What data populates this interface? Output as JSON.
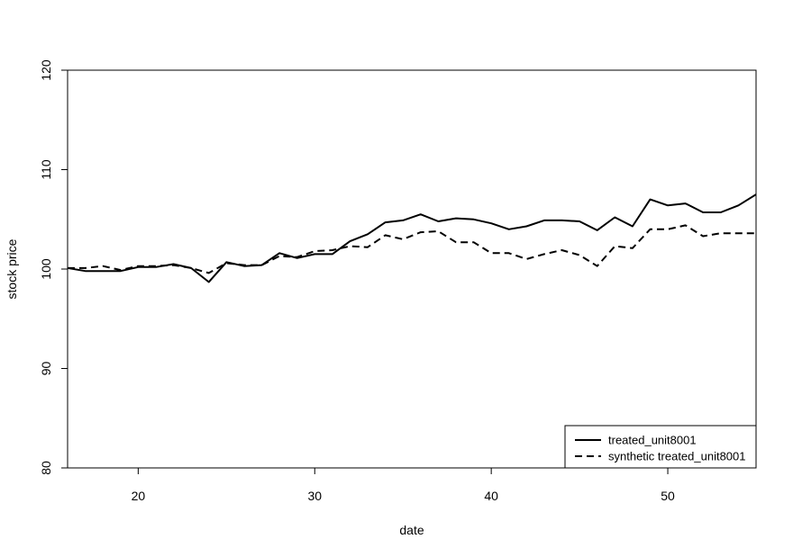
{
  "chart_data": {
    "type": "line",
    "xlabel": "date",
    "ylabel": "stock price",
    "xlim": [
      16,
      55
    ],
    "ylim": [
      80,
      120
    ],
    "x_ticks": [
      20,
      30,
      40,
      50
    ],
    "y_ticks": [
      80,
      90,
      100,
      110,
      120
    ],
    "grid": false,
    "legend_position": "bottom-right",
    "series": [
      {
        "name": "treated_unit8001",
        "style": "solid",
        "x": [
          16,
          17,
          18,
          19,
          20,
          21,
          22,
          23,
          24,
          25,
          26,
          27,
          28,
          29,
          30,
          31,
          32,
          33,
          34,
          35,
          36,
          37,
          38,
          39,
          40,
          41,
          42,
          43,
          44,
          45,
          46,
          47,
          48,
          49,
          50,
          51,
          52,
          53,
          54,
          55
        ],
        "values": [
          100.1,
          99.8,
          99.8,
          99.8,
          100.2,
          100.2,
          100.5,
          100.1,
          98.7,
          100.7,
          100.3,
          100.4,
          101.6,
          101.1,
          101.5,
          101.5,
          102.8,
          103.5,
          104.7,
          104.9,
          105.5,
          104.8,
          105.1,
          105.0,
          104.6,
          104.0,
          104.3,
          104.9,
          104.9,
          104.8,
          103.9,
          105.2,
          104.3,
          107.0,
          106.4,
          106.6,
          105.7,
          105.7,
          106.4,
          107.5
        ]
      },
      {
        "name": "synthetic treated_unit8001",
        "style": "dashed",
        "x": [
          16,
          17,
          18,
          19,
          20,
          21,
          22,
          23,
          24,
          25,
          26,
          27,
          28,
          29,
          30,
          31,
          32,
          33,
          34,
          35,
          36,
          37,
          38,
          39,
          40,
          41,
          42,
          43,
          44,
          45,
          46,
          47,
          48,
          49,
          50,
          51,
          52,
          53,
          54,
          55
        ],
        "values": [
          100.1,
          100.1,
          100.3,
          99.9,
          100.3,
          100.3,
          100.4,
          100.1,
          99.6,
          100.6,
          100.4,
          100.4,
          101.3,
          101.2,
          101.8,
          101.9,
          102.3,
          102.2,
          103.4,
          103.0,
          103.7,
          103.8,
          102.7,
          102.7,
          101.6,
          101.6,
          101.0,
          101.5,
          101.9,
          101.4,
          100.3,
          102.3,
          102.1,
          104.0,
          104.0,
          104.4,
          103.3,
          103.6,
          103.6,
          103.6
        ]
      }
    ]
  }
}
